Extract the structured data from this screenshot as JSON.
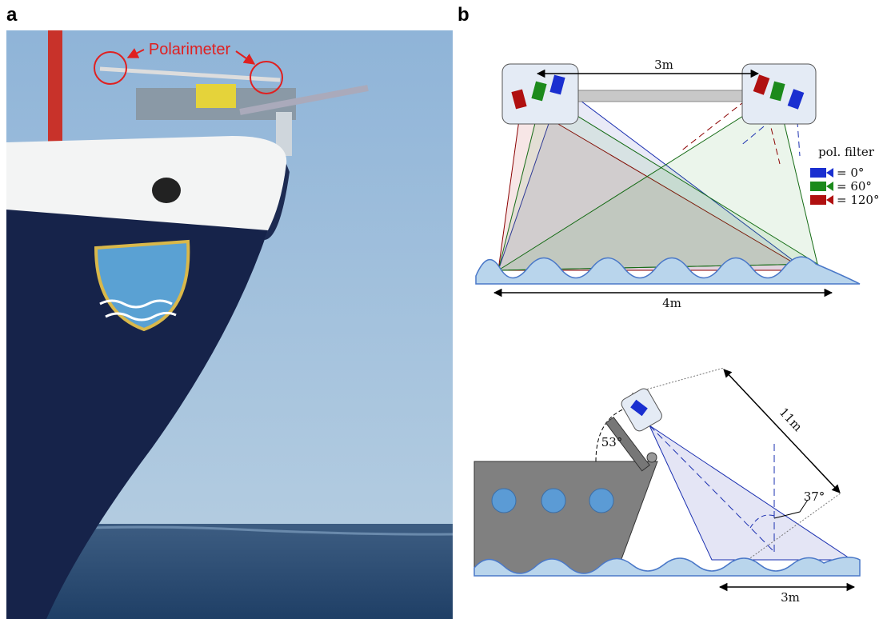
{
  "panel_a": {
    "label": "a",
    "annotation": "Polarimeter"
  },
  "panel_b": {
    "label": "b",
    "top": {
      "separation_label": "3m",
      "footprint_label": "4m",
      "legend": {
        "title": "pol. filter",
        "entries": [
          "= 0°",
          "= 60°",
          "= 120°"
        ]
      }
    },
    "bottom": {
      "distance_label": "11m",
      "tilt_label": "53°",
      "incidence_label": "37°",
      "footprint_label": "3m"
    }
  }
}
